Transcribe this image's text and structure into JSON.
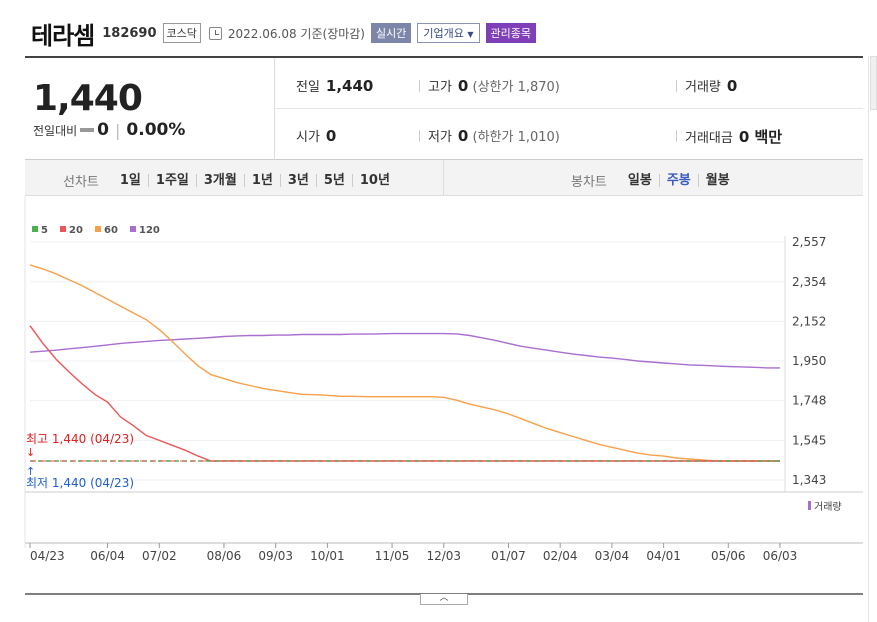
{
  "header": {
    "name": "테라셈",
    "code": "182690",
    "market": "코스닥",
    "date": "2022.06.08 기준(장마감)",
    "btn_realtime": "실시간",
    "btn_company": "기업개요",
    "btn_warning": "관리종목"
  },
  "quote": {
    "price": "1,440",
    "diff_label": "전일대비",
    "diff_value": "0",
    "diff_rate": "0.00%",
    "prev_label": "전일",
    "prev_value": "1,440",
    "high_label": "고가",
    "high_value": "0",
    "high_note": "(상한가 1,870)",
    "volume_label": "거래량",
    "volume_value": "0",
    "open_label": "시가",
    "open_value": "0",
    "low_label": "저가",
    "low_value": "0",
    "low_note": "(하한가 1,010)",
    "amount_label": "거래대금",
    "amount_value": "0 백만"
  },
  "periods": {
    "line_label": "선차트",
    "line_items": [
      "1일",
      "1주일",
      "3개월",
      "1년",
      "3년",
      "5년",
      "10년"
    ],
    "candle_label": "봉차트",
    "candle_items": [
      "일봉",
      "주봉",
      "월봉"
    ],
    "candle_active": 1
  },
  "colors": {
    "ma5": "#4caf50",
    "ma20": "#ee5555",
    "ma60": "#f7a04a",
    "ma120": "#a86fcf",
    "high": "#e02020",
    "low": "#2060d0"
  },
  "chart_data": {
    "type": "line",
    "legend": [
      "5",
      "20",
      "60",
      "120"
    ],
    "legend_placement": "top-left",
    "ylim": [
      1343,
      2557
    ],
    "yticks": [
      "2,557",
      "2,354",
      "2,152",
      "1,950",
      "1,748",
      "1,545",
      "1,343"
    ],
    "yticks_values": [
      2557,
      2354,
      2152,
      1950,
      1748,
      1545,
      1343
    ],
    "xticks": [
      "04/23",
      "06/04",
      "07/02",
      "08/06",
      "09/03",
      "10/01",
      "11/05",
      "12/03",
      "01/07",
      "02/04",
      "03/04",
      "04/01",
      "05/06",
      "06/03"
    ],
    "xtick_positions": [
      0,
      6,
      10,
      15,
      19,
      23,
      28,
      32,
      37,
      41,
      45,
      49,
      54,
      58
    ],
    "x_count": 59,
    "volume_legend": "거래량",
    "high_label": "최고 1,440 (04/23)",
    "low_label": "최저 1,440 (04/23)",
    "price_level": 1440,
    "series": [
      {
        "name": "5",
        "values": [
          1440,
          1440,
          1440,
          1440,
          1440,
          1440,
          1440,
          1440,
          1440,
          1440,
          1440,
          1440,
          1440,
          1440,
          1440,
          1440,
          1440,
          1440,
          1440,
          1440,
          1440,
          1440,
          1440,
          1440,
          1440,
          1440,
          1440,
          1440,
          1440,
          1440,
          1440,
          1440,
          1440,
          1440,
          1440,
          1440,
          1440,
          1440,
          1440,
          1440,
          1440,
          1440,
          1440,
          1440,
          1440,
          1440,
          1440,
          1440,
          1440,
          1440,
          1440,
          1440,
          1440,
          1440,
          1440,
          1440,
          1440,
          1440,
          1440
        ]
      },
      {
        "name": "20",
        "values": [
          2130,
          2040,
          1960,
          1895,
          1835,
          1780,
          1740,
          1665,
          1620,
          1570,
          1545,
          1520,
          1495,
          1465,
          1440,
          1440,
          1440,
          1440,
          1440,
          1440,
          1440,
          1440,
          1440,
          1440,
          1440,
          1440,
          1440,
          1440,
          1440,
          1440,
          1440,
          1440,
          1440,
          1440,
          1440,
          1440,
          1440,
          1440,
          1440,
          1440,
          1440,
          1440,
          1440,
          1440,
          1440,
          1440,
          1440,
          1440,
          1440,
          1440,
          1440,
          1440,
          1440,
          1440,
          1440,
          1440,
          1440,
          1440,
          1440
        ]
      },
      {
        "name": "60",
        "values": [
          2440,
          2420,
          2395,
          2365,
          2335,
          2300,
          2265,
          2230,
          2195,
          2160,
          2110,
          2050,
          1985,
          1925,
          1880,
          1860,
          1840,
          1825,
          1810,
          1800,
          1790,
          1780,
          1778,
          1775,
          1770,
          1770,
          1768,
          1768,
          1768,
          1768,
          1768,
          1768,
          1765,
          1750,
          1730,
          1715,
          1700,
          1680,
          1655,
          1630,
          1605,
          1585,
          1565,
          1545,
          1525,
          1510,
          1495,
          1480,
          1470,
          1465,
          1455,
          1450,
          1445,
          1440,
          1440,
          1440,
          1440,
          1440,
          1440
        ]
      },
      {
        "name": "120",
        "values": [
          1995,
          2000,
          2005,
          2012,
          2018,
          2025,
          2032,
          2040,
          2045,
          2050,
          2055,
          2058,
          2062,
          2066,
          2070,
          2075,
          2078,
          2080,
          2080,
          2082,
          2082,
          2085,
          2085,
          2085,
          2085,
          2087,
          2087,
          2088,
          2090,
          2090,
          2090,
          2090,
          2090,
          2088,
          2080,
          2068,
          2055,
          2040,
          2025,
          2015,
          2005,
          1995,
          1985,
          1978,
          1970,
          1965,
          1958,
          1950,
          1945,
          1940,
          1935,
          1930,
          1928,
          1925,
          1922,
          1920,
          1918,
          1915,
          1915
        ]
      }
    ]
  }
}
